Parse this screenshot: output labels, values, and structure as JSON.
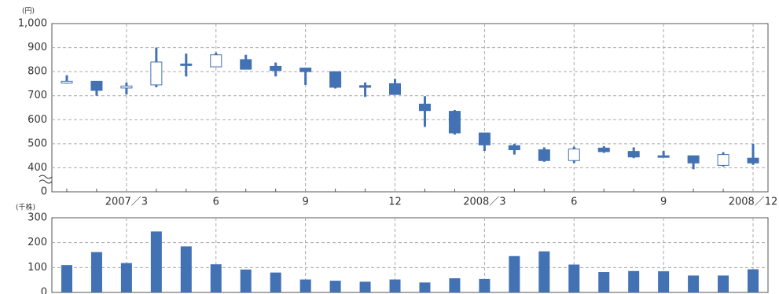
{
  "chart_data": [
    {
      "type": "candlestick",
      "unit": "(円)",
      "categories": [
        null,
        null,
        "2007／3",
        null,
        null,
        "6",
        null,
        null,
        "9",
        null,
        null,
        "12",
        null,
        null,
        "2008／3",
        null,
        null,
        "6",
        null,
        null,
        "9",
        null,
        null,
        "2008／12"
      ],
      "series": [
        {
          "color": "#4272b4",
          "up_color": "#ffffff",
          "open": [
            752,
            760,
            732,
            745,
            832,
            820,
            850,
            822,
            815,
            800,
            742,
            750,
            665,
            635,
            545,
            492,
            475,
            430,
            482,
            468,
            450,
            450,
            410,
            440
          ],
          "high": [
            785,
            760,
            755,
            900,
            875,
            880,
            870,
            838,
            815,
            800,
            755,
            770,
            698,
            640,
            545,
            500,
            485,
            488,
            490,
            485,
            470,
            450,
            465,
            500
          ],
          "low": [
            750,
            700,
            705,
            735,
            780,
            820,
            810,
            780,
            745,
            730,
            695,
            705,
            570,
            538,
            470,
            455,
            425,
            420,
            462,
            440,
            445,
            375,
            405,
            412
          ],
          "close": [
            760,
            722,
            740,
            840,
            826,
            870,
            810,
            805,
            800,
            735,
            735,
            705,
            638,
            545,
            495,
            475,
            430,
            478,
            467,
            445,
            446,
            420,
            455,
            420
          ]
        }
      ],
      "ylim": [
        0,
        1000
      ],
      "y_break": [
        0,
        400
      ],
      "yticks": [
        0,
        400,
        500,
        600,
        700,
        800,
        900,
        {
          "value": 1000,
          "label": "1,000"
        }
      ],
      "grid": true
    },
    {
      "type": "bar",
      "unit": "(千株)",
      "categories": [
        null,
        null,
        "2007／3",
        null,
        null,
        "6",
        null,
        null,
        "9",
        null,
        null,
        "12",
        null,
        null,
        "2008／3",
        null,
        null,
        "6",
        null,
        null,
        "9",
        null,
        null,
        "2008／12"
      ],
      "values": [
        110,
        162,
        118,
        245,
        185,
        113,
        92,
        80,
        52,
        47,
        43,
        52,
        40,
        57,
        54,
        146,
        165,
        112,
        82,
        86,
        85,
        68,
        68,
        93
      ],
      "color": "#4272b4",
      "ylim": [
        0,
        300
      ],
      "yticks": [
        0,
        100,
        200,
        300
      ],
      "grid": true
    }
  ]
}
